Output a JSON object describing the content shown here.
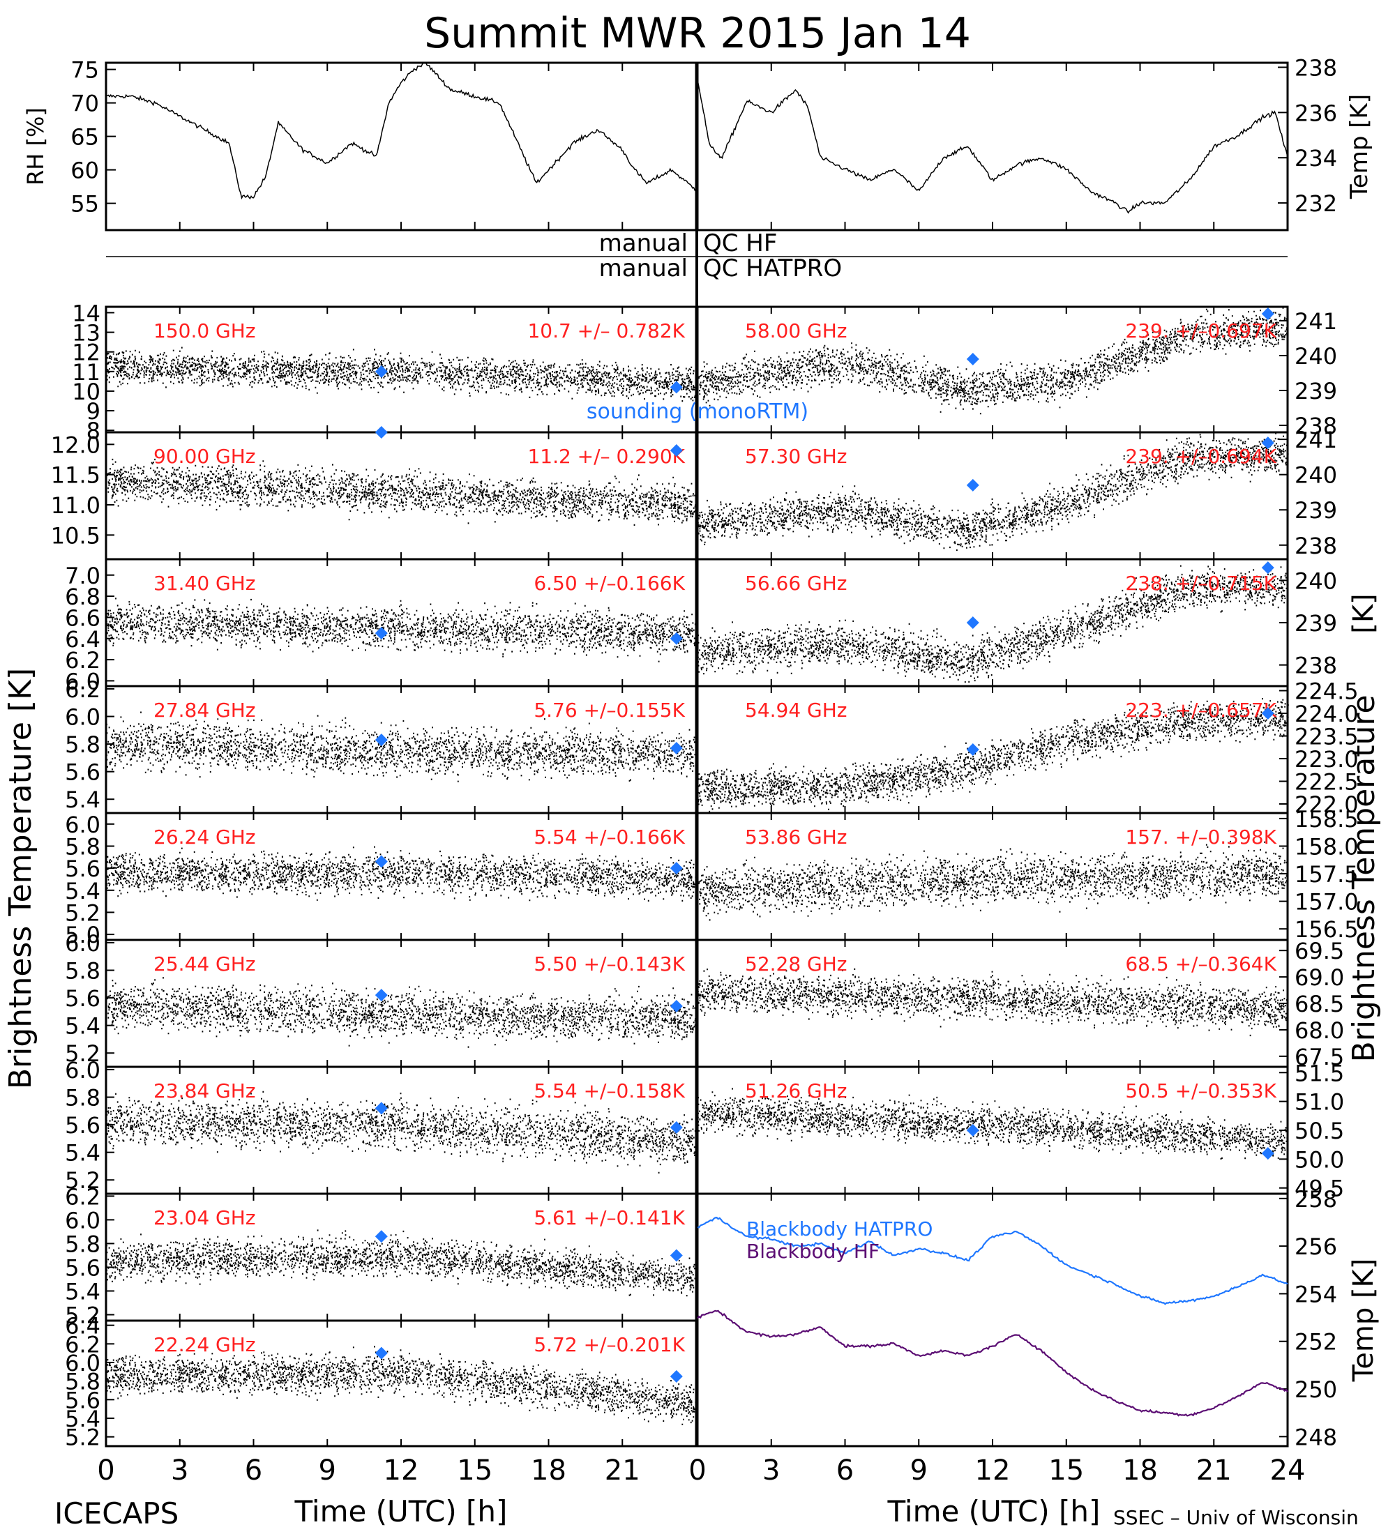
{
  "figure": {
    "title": "Summit MWR 2015 Jan 14",
    "footer_left": "ICECAPS",
    "footer_right": "SSEC – Univ of Wisconsin",
    "left_ylabel": "Brightness Temperature [K]",
    "right_ylabel_upper": "[K]",
    "right_ylabel_lower": "Brightness Temperature",
    "xlabel": "Time (UTC) [h]",
    "qc_label_hf": "manual QC HF",
    "qc_label_hatpro": "manual QC HATPRO",
    "sounding_label": "sounding (monoRTM)",
    "colors": {
      "trace": "#000000",
      "stats": "#ff2020",
      "sounding": "#1f77ff",
      "hatpro_bb": "#1f77ff",
      "hf_bb": "#5b0d73"
    }
  },
  "chart_data": [
    {
      "type": "line",
      "panel": "RH",
      "ylabel": "RH [%]",
      "xlim": [
        0,
        24
      ],
      "ylim": [
        51,
        76
      ],
      "yticks": [
        55,
        60,
        65,
        70,
        75
      ],
      "xticks": [
        0,
        3,
        6,
        9,
        12,
        15,
        18,
        21,
        24
      ],
      "x": [
        0,
        1,
        2,
        3,
        4,
        5,
        5.5,
        6,
        6.5,
        7,
        8,
        9,
        10,
        11,
        11.5,
        12,
        12.5,
        13,
        14,
        15,
        16,
        17,
        17.5,
        18,
        19,
        20,
        21,
        21.5,
        22,
        23,
        24
      ],
      "values": [
        71,
        71,
        70,
        68,
        66,
        64,
        56,
        56,
        59,
        67,
        63,
        61,
        64,
        62,
        70,
        73,
        75,
        76,
        72,
        71,
        70,
        62,
        58,
        60,
        64,
        66,
        63,
        60,
        58,
        60,
        57
      ]
    },
    {
      "type": "line",
      "panel": "Temp",
      "ylabel": "Temp [K]",
      "xlim": [
        0,
        24
      ],
      "ylim": [
        230.8,
        238.2
      ],
      "yticks": [
        232,
        234,
        236,
        238
      ],
      "xticks": [
        0,
        3,
        6,
        9,
        12,
        15,
        18,
        21,
        24
      ],
      "x": [
        0,
        0.5,
        1,
        2,
        3,
        4,
        4.5,
        5,
        6,
        7,
        8,
        9,
        10,
        11,
        12,
        13,
        14,
        15,
        16,
        17,
        17.5,
        18,
        19,
        20,
        21,
        22,
        23,
        23.5,
        24
      ],
      "values": [
        237.5,
        234.5,
        234,
        236.5,
        236,
        237,
        236.2,
        234,
        233.5,
        233,
        233.5,
        232.5,
        234,
        234.5,
        233,
        233.7,
        234,
        233.5,
        232.5,
        232,
        231.6,
        232,
        232,
        233,
        234.5,
        235,
        235.8,
        236,
        234
      ]
    },
    {
      "type": "scatter",
      "column": "left",
      "row": 0,
      "label": "150.0 GHz",
      "stats": "10.7 +/– 0.782K",
      "xlim": [
        0,
        24
      ],
      "ylim": [
        7.9,
        14.3
      ],
      "yticks": [
        8,
        9,
        10,
        11,
        12,
        13,
        14
      ],
      "trend_x": [
        0,
        12,
        24
      ],
      "trend_y": [
        11.2,
        11.0,
        10.4
      ],
      "noise": 0.8,
      "sounding": [
        {
          "x": 11.2,
          "y": 11.0
        },
        {
          "x": 23.2,
          "y": 10.2
        }
      ]
    },
    {
      "type": "scatter",
      "column": "left",
      "row": 1,
      "label": "90.00 GHz",
      "stats": "11.2 +/– 0.290K",
      "xlim": [
        0,
        24
      ],
      "ylim": [
        10.1,
        12.2
      ],
      "yticks": [
        10.5,
        11.0,
        11.5,
        12.0
      ],
      "trend_x": [
        0,
        12,
        24
      ],
      "trend_y": [
        11.4,
        11.2,
        11.0
      ],
      "noise": 0.3,
      "sounding": [
        {
          "x": 11.2,
          "y": 12.2
        },
        {
          "x": 23.2,
          "y": 11.9
        }
      ]
    },
    {
      "type": "scatter",
      "column": "left",
      "row": 2,
      "label": "31.40 GHz",
      "stats": "6.50 +/–0.166K",
      "xlim": [
        0,
        24
      ],
      "ylim": [
        5.95,
        7.15
      ],
      "yticks": [
        6.0,
        6.2,
        6.4,
        6.6,
        6.8,
        7.0
      ],
      "trend_x": [
        0,
        12,
        24
      ],
      "trend_y": [
        6.55,
        6.5,
        6.45
      ],
      "noise": 0.18,
      "sounding": [
        {
          "x": 11.2,
          "y": 6.45
        },
        {
          "x": 23.2,
          "y": 6.4
        }
      ]
    },
    {
      "type": "scatter",
      "column": "left",
      "row": 3,
      "label": "27.84 GHz",
      "stats": "5.76 +/–0.155K",
      "xlim": [
        0,
        24
      ],
      "ylim": [
        5.3,
        6.22
      ],
      "yticks": [
        5.4,
        5.6,
        5.8,
        6.0,
        6.2
      ],
      "trend_x": [
        0,
        12,
        24
      ],
      "trend_y": [
        5.8,
        5.75,
        5.72
      ],
      "noise": 0.16,
      "sounding": [
        {
          "x": 11.2,
          "y": 5.83
        },
        {
          "x": 23.2,
          "y": 5.77
        }
      ]
    },
    {
      "type": "scatter",
      "column": "left",
      "row": 4,
      "label": "26.24 GHz",
      "stats": "5.54 +/–0.166K",
      "xlim": [
        0,
        24
      ],
      "ylim": [
        4.95,
        6.1
      ],
      "yticks": [
        5.0,
        5.2,
        5.4,
        5.6,
        5.8,
        6.0
      ],
      "trend_x": [
        0,
        12,
        24
      ],
      "trend_y": [
        5.55,
        5.56,
        5.5
      ],
      "noise": 0.17,
      "sounding": [
        {
          "x": 11.2,
          "y": 5.66
        },
        {
          "x": 23.2,
          "y": 5.6
        }
      ]
    },
    {
      "type": "scatter",
      "column": "left",
      "row": 5,
      "label": "25.44 GHz",
      "stats": "5.50 +/–0.143K",
      "xlim": [
        0,
        24
      ],
      "ylim": [
        5.1,
        6.02
      ],
      "yticks": [
        5.2,
        5.4,
        5.6,
        5.8,
        6.0
      ],
      "trend_x": [
        0,
        12,
        24
      ],
      "trend_y": [
        5.55,
        5.48,
        5.45
      ],
      "noise": 0.15,
      "sounding": [
        {
          "x": 11.2,
          "y": 5.62
        },
        {
          "x": 23.2,
          "y": 5.54
        }
      ]
    },
    {
      "type": "scatter",
      "column": "left",
      "row": 6,
      "label": "23.84 GHz",
      "stats": "5.54 +/–0.158K",
      "xlim": [
        0,
        24
      ],
      "ylim": [
        5.1,
        6.02
      ],
      "yticks": [
        5.2,
        5.4,
        5.6,
        5.8,
        6.0
      ],
      "trend_x": [
        0,
        12,
        24
      ],
      "trend_y": [
        5.62,
        5.6,
        5.48
      ],
      "noise": 0.16,
      "sounding": [
        {
          "x": 11.2,
          "y": 5.72
        },
        {
          "x": 23.2,
          "y": 5.58
        }
      ]
    },
    {
      "type": "scatter",
      "column": "left",
      "row": 7,
      "label": "23.04 GHz",
      "stats": "5.61 +/–0.141K",
      "xlim": [
        0,
        24
      ],
      "ylim": [
        5.15,
        6.22
      ],
      "yticks": [
        5.2,
        5.4,
        5.6,
        5.8,
        6.0,
        6.2
      ],
      "trend_x": [
        0,
        12,
        24
      ],
      "trend_y": [
        5.65,
        5.7,
        5.5
      ],
      "noise": 0.15,
      "sounding": [
        {
          "x": 11.2,
          "y": 5.86
        },
        {
          "x": 23.2,
          "y": 5.7
        }
      ]
    },
    {
      "type": "scatter",
      "column": "left",
      "row": 8,
      "label": "22.24 GHz",
      "stats": "5.72 +/–0.201K",
      "xlim": [
        0,
        24
      ],
      "ylim": [
        5.1,
        6.45
      ],
      "yticks": [
        5.2,
        5.4,
        5.6,
        5.8,
        6.0,
        6.2,
        6.4
      ],
      "trend_x": [
        0,
        12,
        24
      ],
      "trend_y": [
        5.85,
        5.9,
        5.55
      ],
      "noise": 0.2,
      "sounding": [
        {
          "x": 11.2,
          "y": 6.1
        },
        {
          "x": 23.2,
          "y": 5.85
        }
      ]
    },
    {
      "type": "scatter",
      "column": "right",
      "row": 0,
      "label": "58.00 GHz",
      "stats": "239. +/–0.697K",
      "xlim": [
        0,
        24
      ],
      "ylim": [
        237.8,
        241.4
      ],
      "yticks": [
        238,
        239,
        240,
        241
      ],
      "trend_x": [
        0,
        6,
        11,
        15,
        20,
        24
      ],
      "trend_y": [
        239.2,
        239.8,
        239,
        239.3,
        240.6,
        240.8
      ],
      "noise": 0.5,
      "sounding": [
        {
          "x": 11.2,
          "y": 239.9
        },
        {
          "x": 23.2,
          "y": 241.2
        }
      ]
    },
    {
      "type": "scatter",
      "column": "right",
      "row": 1,
      "label": "57.30 GHz",
      "stats": "239. +/–0.694K",
      "xlim": [
        0,
        24
      ],
      "ylim": [
        237.6,
        241.2
      ],
      "yticks": [
        238,
        239,
        240,
        241
      ],
      "trend_x": [
        0,
        6,
        11,
        15,
        20,
        24
      ],
      "trend_y": [
        238.6,
        239,
        238.4,
        239.2,
        240.5,
        240.6
      ],
      "noise": 0.5,
      "sounding": [
        {
          "x": 11.2,
          "y": 239.7
        },
        {
          "x": 23.2,
          "y": 240.9
        }
      ]
    },
    {
      "type": "scatter",
      "column": "right",
      "row": 2,
      "label": "56.66 GHz",
      "stats": "238. +/–0.715K",
      "xlim": [
        0,
        24
      ],
      "ylim": [
        237.5,
        240.5
      ],
      "yticks": [
        238,
        239,
        240
      ],
      "trend_x": [
        0,
        6,
        11,
        15,
        20,
        24
      ],
      "trend_y": [
        238.3,
        238.5,
        238.1,
        238.8,
        239.8,
        239.8
      ],
      "noise": 0.45,
      "sounding": [
        {
          "x": 11.2,
          "y": 239.0
        },
        {
          "x": 23.2,
          "y": 240.3
        }
      ]
    },
    {
      "type": "scatter",
      "column": "right",
      "row": 3,
      "label": "54.94 GHz",
      "stats": "223. +/–0.657K",
      "xlim": [
        0,
        24
      ],
      "ylim": [
        221.8,
        224.6
      ],
      "yticks": [
        222.0,
        222.5,
        223.0,
        223.5,
        224.0,
        224.5
      ],
      "trend_x": [
        0,
        6,
        11,
        15,
        20,
        24
      ],
      "trend_y": [
        222.3,
        222.4,
        222.8,
        223.4,
        223.8,
        223.9
      ],
      "noise": 0.4,
      "sounding": [
        {
          "x": 11.2,
          "y": 223.2
        },
        {
          "x": 23.2,
          "y": 224.0
        }
      ]
    },
    {
      "type": "scatter",
      "column": "right",
      "row": 4,
      "label": "53.86 GHz",
      "stats": "157. +/–0.398K",
      "xlim": [
        0,
        24
      ],
      "ylim": [
        156.3,
        158.6
      ],
      "yticks": [
        156.5,
        157.0,
        157.5,
        158.0,
        158.5
      ],
      "trend_x": [
        0,
        12,
        24
      ],
      "trend_y": [
        157.2,
        157.4,
        157.5
      ],
      "noise": 0.4,
      "sounding": []
    },
    {
      "type": "scatter",
      "column": "right",
      "row": 5,
      "label": "52.28 GHz",
      "stats": "68.5 +/–0.364K",
      "xlim": [
        0,
        24
      ],
      "ylim": [
        67.3,
        69.7
      ],
      "yticks": [
        67.5,
        68.0,
        68.5,
        69.0,
        69.5
      ],
      "trend_x": [
        0,
        12,
        24
      ],
      "trend_y": [
        68.7,
        68.6,
        68.4
      ],
      "noise": 0.35,
      "sounding": []
    },
    {
      "type": "scatter",
      "column": "right",
      "row": 6,
      "label": "51.26 GHz",
      "stats": "50.5 +/–0.353K",
      "xlim": [
        0,
        24
      ],
      "ylim": [
        49.4,
        51.6
      ],
      "yticks": [
        49.5,
        50.0,
        50.5,
        51.0,
        51.5
      ],
      "trend_x": [
        0,
        12,
        24
      ],
      "trend_y": [
        50.8,
        50.6,
        50.3
      ],
      "noise": 0.3,
      "sounding": [
        {
          "x": 11.2,
          "y": 50.5
        },
        {
          "x": 23.2,
          "y": 50.1
        }
      ]
    },
    {
      "type": "line",
      "column": "right",
      "row": 7,
      "panel": "Blackbody",
      "ylabel": "Temp [K]",
      "xlim": [
        0,
        24
      ],
      "ylim": [
        247.6,
        258.2
      ],
      "yticks": [
        248,
        250,
        252,
        254,
        256,
        258
      ],
      "xticks": [
        0,
        3,
        6,
        9,
        12,
        15,
        18,
        21,
        24
      ],
      "series": [
        {
          "name": "Blackbody HATPRO",
          "x": [
            0,
            0.8,
            2,
            3,
            4,
            5,
            6,
            7,
            8,
            9,
            10,
            11,
            12,
            13,
            14,
            15,
            16,
            17,
            18,
            19,
            20,
            21,
            22,
            23,
            24
          ],
          "values": [
            256.8,
            257.2,
            256.4,
            256.3,
            256.0,
            256.1,
            255.7,
            256.2,
            255.6,
            255.9,
            255.7,
            255.4,
            256.4,
            256.6,
            256.0,
            255.2,
            254.8,
            254.4,
            253.9,
            253.6,
            253.7,
            253.9,
            254.3,
            254.8,
            254.4
          ]
        },
        {
          "name": "Blackbody HF",
          "x": [
            0,
            0.8,
            2,
            3,
            4,
            5,
            6,
            7,
            8,
            9,
            10,
            11,
            12,
            13,
            14,
            15,
            16,
            17,
            18,
            19,
            20,
            21,
            22,
            23,
            24
          ],
          "values": [
            253.0,
            253.3,
            252.4,
            252.2,
            252.3,
            252.6,
            251.8,
            251.8,
            251.9,
            251.4,
            251.6,
            251.4,
            251.8,
            252.3,
            251.6,
            250.7,
            250.0,
            249.5,
            249.1,
            249.0,
            248.9,
            249.2,
            249.7,
            250.3,
            249.9
          ]
        }
      ]
    }
  ]
}
